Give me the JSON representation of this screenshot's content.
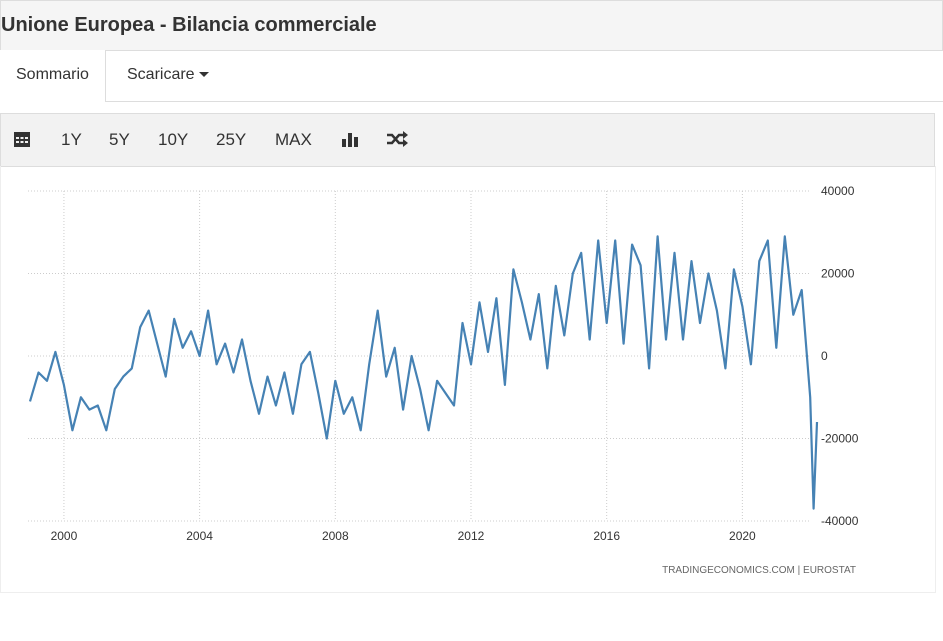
{
  "header": {
    "title": "Unione Europea - Bilancia commerciale"
  },
  "tabs": [
    "Sommario",
    "Scaricare"
  ],
  "toolbar": [
    "1Y",
    "5Y",
    "10Y",
    "25Y",
    "MAX"
  ],
  "source": "TRADINGECONOMICS.COM  |  EUROSTAT",
  "chart_data": {
    "type": "line",
    "color": "#4682b4",
    "grid": true,
    "xlim": [
      1999,
      2022.2
    ],
    "xticks": [
      2000,
      2004,
      2008,
      2012,
      2016,
      2020
    ],
    "ylim": [
      -40000,
      40000
    ],
    "yticks": [
      40000,
      20000,
      0,
      -20000,
      -40000
    ],
    "x": [
      1999,
      1999.25,
      1999.5,
      1999.75,
      2000,
      2000.25,
      2000.5,
      2000.75,
      2001,
      2001.25,
      2001.5,
      2001.75,
      2002,
      2002.25,
      2002.5,
      2002.75,
      2003,
      2003.25,
      2003.5,
      2003.75,
      2004,
      2004.25,
      2004.5,
      2004.75,
      2005,
      2005.25,
      2005.5,
      2005.75,
      2006,
      2006.25,
      2006.5,
      2006.75,
      2007,
      2007.25,
      2007.5,
      2007.75,
      2008,
      2008.25,
      2008.5,
      2008.75,
      2009,
      2009.25,
      2009.5,
      2009.75,
      2010,
      2010.25,
      2010.5,
      2010.75,
      2011,
      2011.25,
      2011.5,
      2011.75,
      2012,
      2012.25,
      2012.5,
      2012.75,
      2013,
      2013.25,
      2013.5,
      2013.75,
      2014,
      2014.25,
      2014.5,
      2014.75,
      2015,
      2015.25,
      2015.5,
      2015.75,
      2016,
      2016.25,
      2016.5,
      2016.75,
      2017,
      2017.25,
      2017.5,
      2017.75,
      2018,
      2018.25,
      2018.5,
      2018.75,
      2019,
      2019.25,
      2019.5,
      2019.75,
      2020,
      2020.25,
      2020.5,
      2020.75,
      2021,
      2021.25,
      2021.5,
      2021.75,
      2022,
      2022.1,
      2022.2
    ],
    "values": [
      -11000,
      -4000,
      -6000,
      1000,
      -7000,
      -18000,
      -10000,
      -13000,
      -12000,
      -18000,
      -8000,
      -5000,
      -3000,
      7000,
      11000,
      3000,
      -5000,
      9000,
      2000,
      6000,
      0,
      11000,
      -2000,
      3000,
      -4000,
      4000,
      -6000,
      -14000,
      -5000,
      -12000,
      -4000,
      -14000,
      -2000,
      1000,
      -9000,
      -20000,
      -6000,
      -14000,
      -10000,
      -18000,
      -2000,
      11000,
      -5000,
      2000,
      -13000,
      0,
      -8000,
      -18000,
      -6000,
      -9000,
      -12000,
      8000,
      -2000,
      13000,
      1000,
      14000,
      -7000,
      21000,
      13000,
      4000,
      15000,
      -3000,
      17000,
      5000,
      20000,
      25000,
      4000,
      28000,
      8000,
      28000,
      3000,
      27000,
      22000,
      -3000,
      29000,
      4000,
      25000,
      4000,
      23000,
      8000,
      20000,
      11000,
      -3000,
      21000,
      12000,
      -2000,
      23000,
      28000,
      2000,
      29000,
      10000,
      16000,
      -10000,
      -37000,
      -16000
    ]
  }
}
